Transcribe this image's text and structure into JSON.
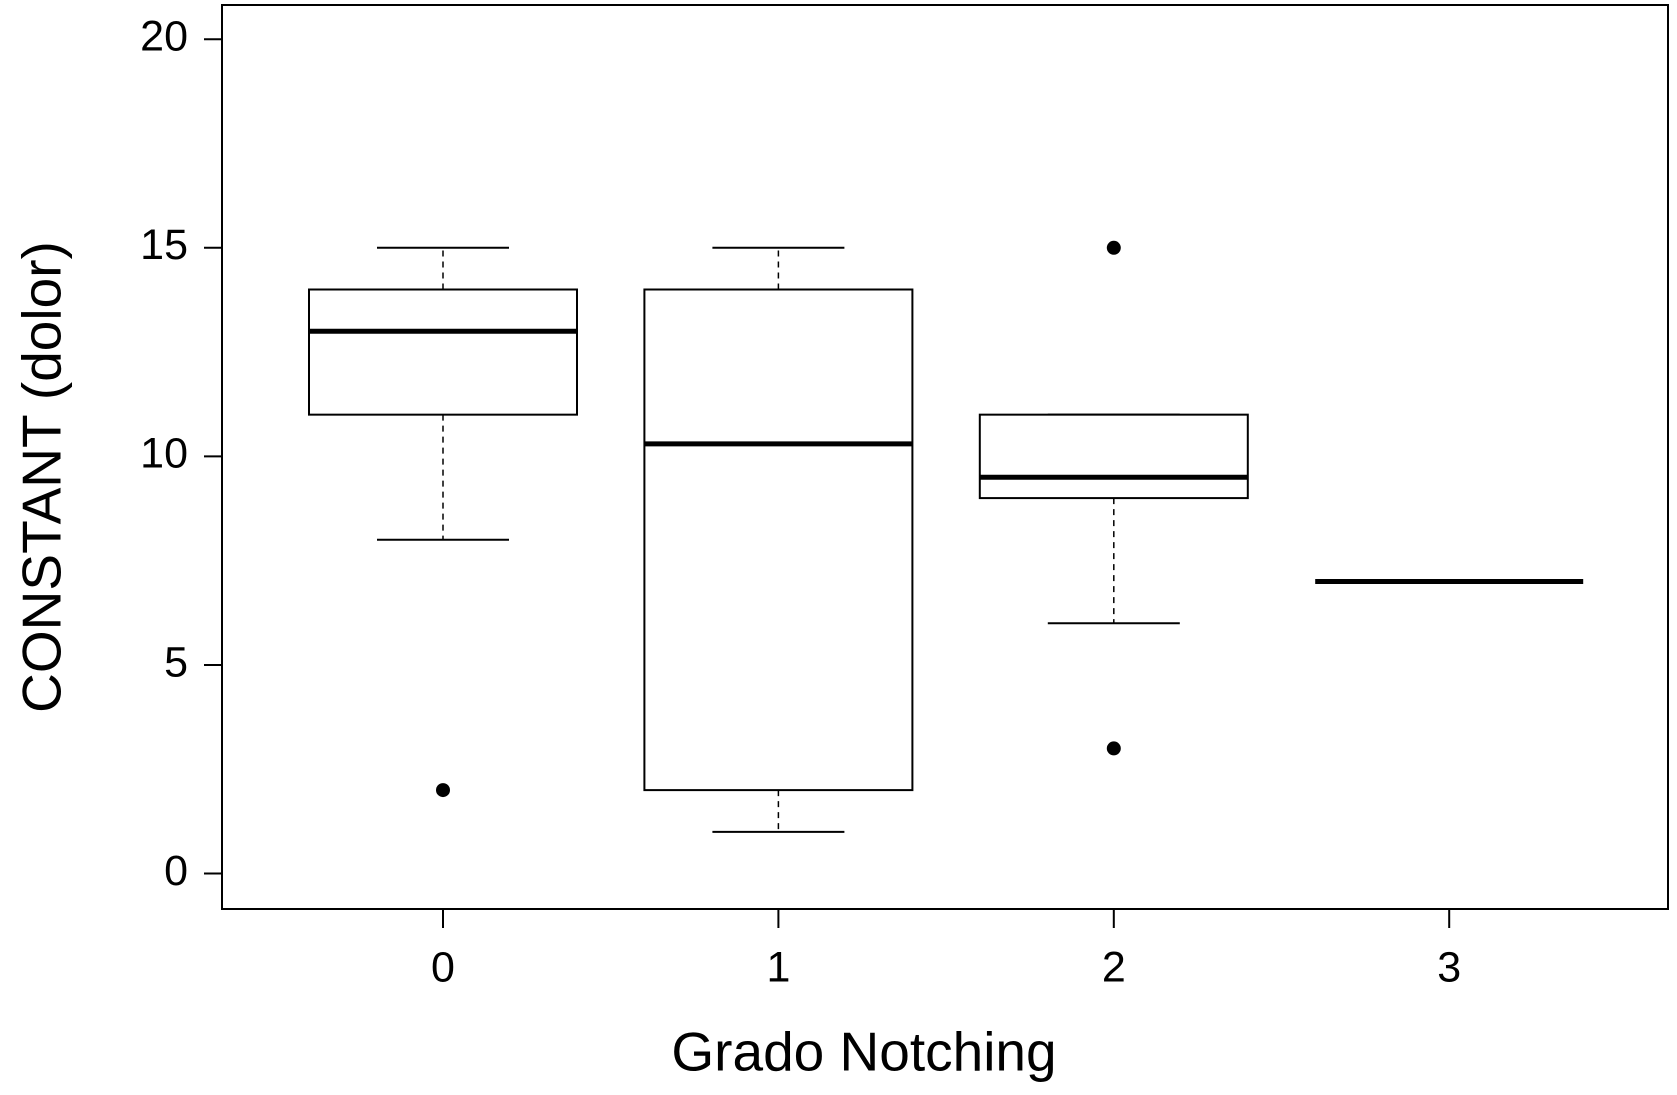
{
  "chart_data": {
    "type": "box",
    "x_label": "Grado Notching",
    "y_label": "CONSTANT (dolor)",
    "categories": [
      "0",
      "1",
      "2",
      "3"
    ],
    "min": [
      8,
      1,
      6,
      7
    ],
    "q1": [
      11,
      2,
      9,
      7
    ],
    "median": [
      13,
      10.3,
      9.5,
      7
    ],
    "q3": [
      14,
      14,
      11,
      7
    ],
    "max": [
      15,
      15,
      11,
      7
    ],
    "outliers": [
      [
        2
      ],
      [],
      [
        15,
        3
      ],
      []
    ],
    "color": "#000000",
    "ylim": [
      -0.85,
      20.82
    ],
    "yticks": [
      0,
      5,
      10,
      15,
      20
    ]
  }
}
